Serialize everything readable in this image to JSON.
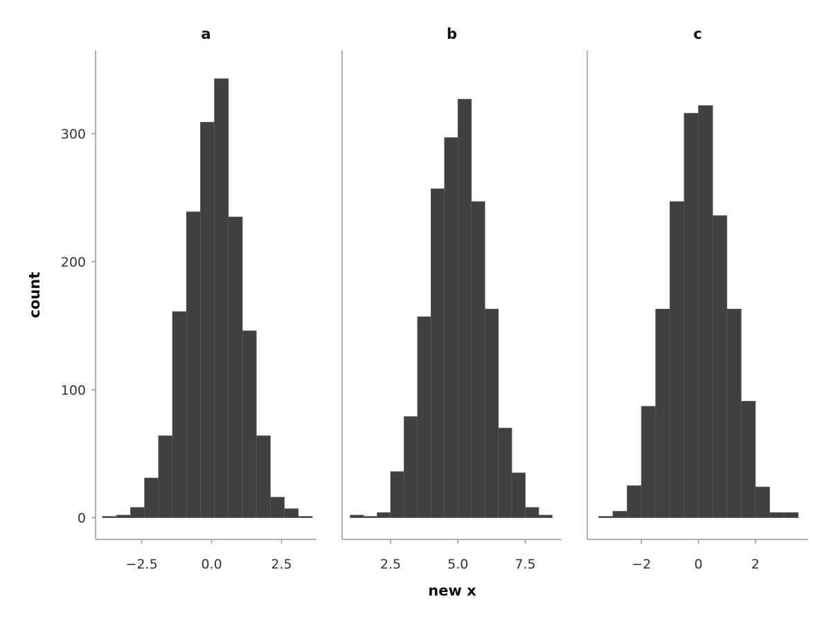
{
  "chart_data": {
    "type": "bar",
    "facets": true,
    "shared_y_axis": true,
    "bar_color": "#404040",
    "bar_edge_color": "#5a5a5a",
    "axis_color": "#999999",
    "ylabel": "count",
    "xlabel": "new x",
    "ylim": [
      -17,
      365
    ],
    "yticks": [
      0,
      100,
      200,
      300
    ],
    "ytick_labels": [
      "0",
      "100",
      "200",
      "300"
    ],
    "grid": false,
    "panels": [
      {
        "title": "a",
        "xlim": [
          -4.15,
          3.75
        ],
        "xticks": [
          -2.5,
          0.0,
          2.5
        ],
        "xtick_labels": [
          "−2.5",
          "0.0",
          "2.5"
        ],
        "bin_edges": [
          -3.9,
          -3.4,
          -2.9,
          -2.4,
          -1.9,
          -1.4,
          -0.9,
          -0.4,
          0.1,
          0.6,
          1.1,
          1.6,
          2.1,
          2.6,
          3.1,
          3.6
        ],
        "counts": [
          1,
          2,
          8,
          31,
          64,
          161,
          239,
          309,
          343,
          235,
          146,
          64,
          16,
          7,
          1
        ]
      },
      {
        "title": "b",
        "xlim": [
          0.7,
          8.85
        ],
        "xticks": [
          2.5,
          5.0,
          7.5
        ],
        "xtick_labels": [
          "2.5",
          "5.0",
          "7.5"
        ],
        "bin_edges": [
          1.0,
          1.5,
          2.0,
          2.5,
          3.0,
          3.5,
          4.0,
          4.5,
          5.0,
          5.5,
          6.0,
          6.5,
          7.0,
          7.5,
          8.0,
          8.5
        ],
        "counts": [
          2,
          1,
          4,
          36,
          79,
          157,
          257,
          297,
          327,
          247,
          163,
          70,
          35,
          8,
          2
        ]
      },
      {
        "title": "c",
        "xlim": [
          -3.9,
          3.85
        ],
        "xticks": [
          -2,
          0,
          2
        ],
        "xtick_labels": [
          "−2",
          "0",
          "2"
        ],
        "bin_edges": [
          -3.5,
          -3.0,
          -2.5,
          -2.0,
          -1.5,
          -1.0,
          -0.5,
          0.0,
          0.5,
          1.0,
          1.5,
          2.0,
          2.5,
          3.0,
          3.5
        ],
        "counts": [
          1,
          5,
          25,
          87,
          163,
          247,
          316,
          322,
          236,
          163,
          91,
          24,
          4,
          4
        ]
      }
    ]
  }
}
